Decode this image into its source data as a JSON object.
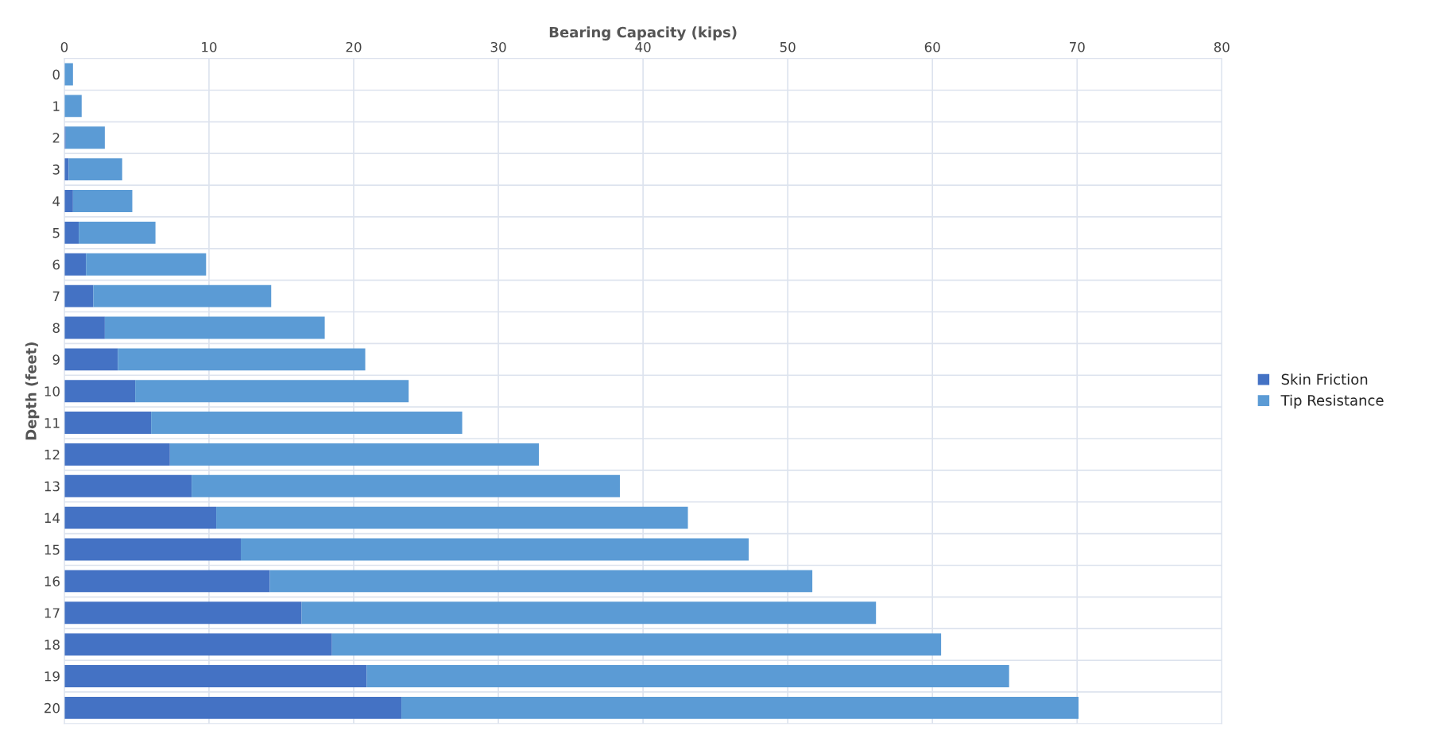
{
  "chart_data": {
    "type": "bar",
    "orientation": "horizontal",
    "stacked": true,
    "xlabel": "Bearing Capacity (kips)",
    "ylabel": "Depth (feet)",
    "categories": [
      "0",
      "1",
      "2",
      "3",
      "4",
      "5",
      "6",
      "7",
      "8",
      "9",
      "10",
      "11",
      "12",
      "13",
      "14",
      "15",
      "16",
      "17",
      "18",
      "19",
      "20"
    ],
    "series": [
      {
        "name": "Skin Friction",
        "color": "#4472c4",
        "values": [
          0,
          0,
          0.1,
          0.3,
          0.6,
          1.0,
          1.5,
          2.0,
          2.8,
          3.7,
          4.9,
          6.0,
          7.3,
          8.8,
          10.5,
          12.2,
          14.2,
          16.4,
          18.5,
          20.9,
          23.3
        ]
      },
      {
        "name": "Tip Resistance",
        "color": "#5b9bd5",
        "values": [
          0.6,
          1.2,
          2.7,
          3.7,
          4.1,
          5.3,
          8.3,
          12.3,
          15.2,
          17.1,
          18.9,
          21.5,
          25.5,
          29.6,
          32.6,
          35.1,
          37.5,
          39.7,
          42.1,
          44.4,
          46.8
        ]
      }
    ],
    "xlim": [
      0,
      80
    ],
    "xticks": [
      0,
      10,
      20,
      30,
      40,
      50,
      60,
      70,
      80
    ],
    "grid": true,
    "legend": "right"
  }
}
